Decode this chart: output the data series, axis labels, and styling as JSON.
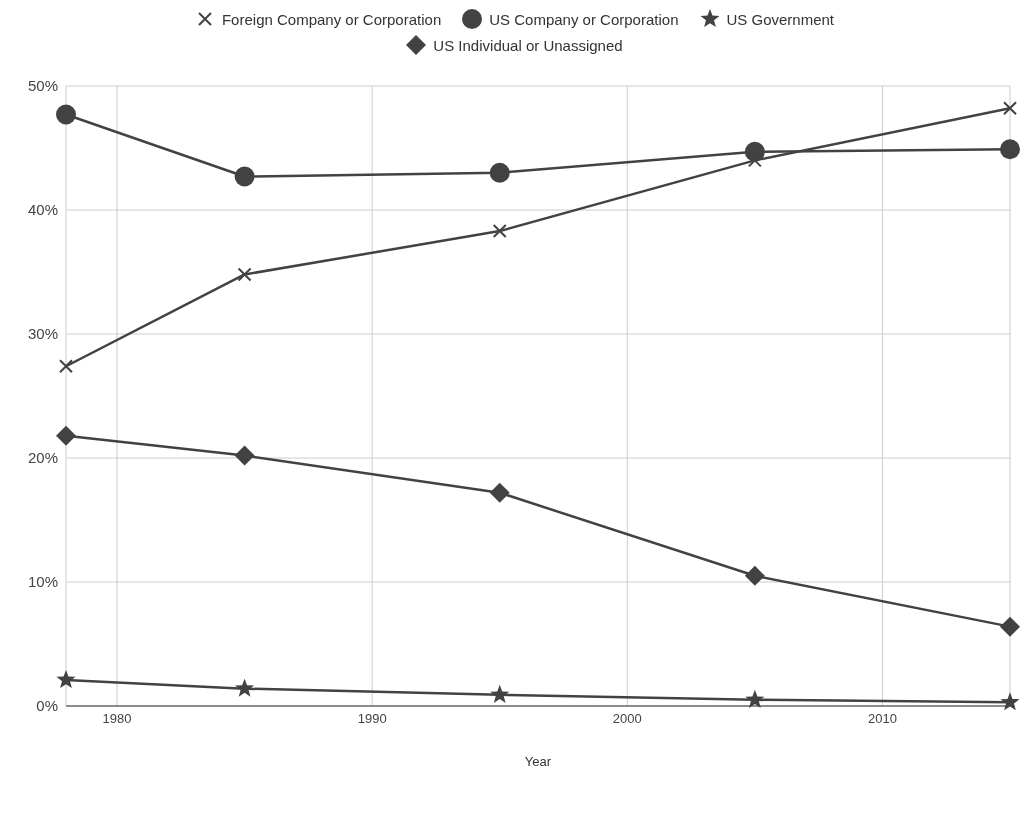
{
  "chart_data": {
    "type": "line",
    "xlabel": "Year",
    "x": [
      1978,
      1985,
      1995,
      2005,
      2015
    ],
    "xlim": [
      1978,
      2015
    ],
    "xticks": [
      1980,
      1990,
      2000,
      2010
    ],
    "ylim": [
      0,
      50
    ],
    "yticks": [
      {
        "value": 0,
        "label": "0%"
      },
      {
        "value": 10,
        "label": "10%"
      },
      {
        "value": 20,
        "label": "20%"
      },
      {
        "value": 30,
        "label": "30%"
      },
      {
        "value": 40,
        "label": "40%"
      },
      {
        "value": 50,
        "label": "50%"
      }
    ],
    "grid": true,
    "legend": "top",
    "line_style": "solid",
    "series": [
      {
        "name": "Foreign Company or Corporation",
        "color": "#424242",
        "marker": "cross",
        "values": [
          27.4,
          34.8,
          38.3,
          44.0,
          48.2
        ]
      },
      {
        "name": "US Company or Corporation",
        "color": "#424242",
        "marker": "circle",
        "values": [
          47.7,
          42.7,
          43.0,
          44.7,
          44.9
        ]
      },
      {
        "name": "US Government",
        "color": "#424242",
        "marker": "star",
        "values": [
          2.1,
          1.4,
          0.9,
          0.5,
          0.3
        ]
      },
      {
        "name": "US Individual or Unassigned",
        "color": "#424242",
        "marker": "diamond",
        "values": [
          21.8,
          20.2,
          17.2,
          10.5,
          6.4
        ]
      }
    ]
  }
}
